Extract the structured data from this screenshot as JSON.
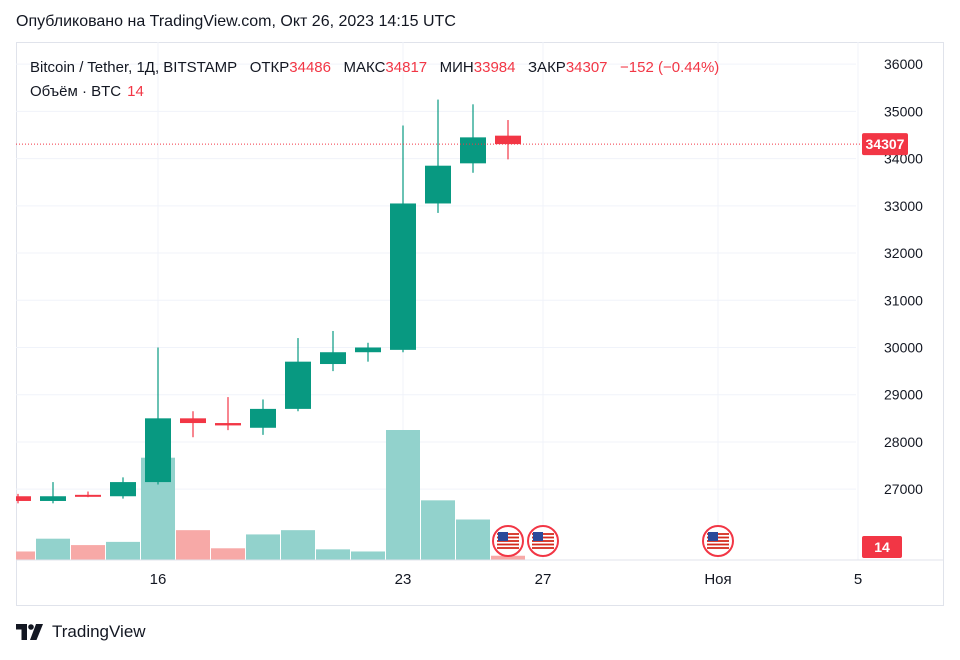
{
  "published_line": "Опубликовано на TradingView.com, Окт 26, 2023 14:15 UTC",
  "legend": {
    "symbol": "Bitcoin / Tether, 1Д, BITSTAMP",
    "open_label": "ОТКР",
    "open": "34486",
    "high_label": "МАКС",
    "high": "34817",
    "low_label": "МИН",
    "low": "33984",
    "close_label": "ЗАКР",
    "close": "34307",
    "change": "−152 (−0.44%)"
  },
  "volume_legend": {
    "label": "Объём · BTC",
    "value": "14"
  },
  "price_badge": "34307",
  "volume_badge": "14",
  "footer": {
    "brand": "TradingView",
    "logo_icon": "tradingview-logo-icon"
  },
  "colors": {
    "up": "#089981",
    "down": "#f23645",
    "vol_up": "#92d2cc",
    "vol_down": "#f7a9a7"
  },
  "chart_data": {
    "type": "candlestick",
    "ylim": [
      25500,
      36300
    ],
    "y_ticks": [
      27000,
      28000,
      29000,
      30000,
      31000,
      32000,
      33000,
      34000,
      35000,
      36000
    ],
    "x_ticks": [
      {
        "day": 16,
        "label": "16"
      },
      {
        "day": 23,
        "label": "23"
      },
      {
        "day": 27,
        "label": "27"
      },
      {
        "day": 32,
        "label": "Ноя"
      },
      {
        "day": 36,
        "label": "5"
      }
    ],
    "last_price": 34307,
    "candles": [
      {
        "day": 12,
        "open": 26850,
        "high": 26900,
        "low": 26700,
        "close": 26750,
        "volume": 0.4
      },
      {
        "day": 13,
        "open": 26750,
        "high": 27150,
        "low": 26700,
        "close": 26850,
        "volume": 1.0
      },
      {
        "day": 14,
        "open": 26880,
        "high": 26950,
        "low": 26830,
        "close": 26860,
        "volume": 0.7
      },
      {
        "day": 15,
        "open": 26850,
        "high": 27250,
        "low": 26800,
        "close": 27150,
        "volume": 0.85
      },
      {
        "day": 16,
        "open": 27150,
        "high": 30000,
        "low": 27100,
        "close": 28500,
        "volume": 4.8
      },
      {
        "day": 17,
        "open": 28500,
        "high": 28650,
        "low": 28100,
        "close": 28400,
        "volume": 1.4
      },
      {
        "day": 18,
        "open": 28400,
        "high": 28950,
        "low": 28250,
        "close": 28350,
        "volume": 0.55
      },
      {
        "day": 19,
        "open": 28300,
        "high": 28900,
        "low": 28150,
        "close": 28700,
        "volume": 1.2
      },
      {
        "day": 20,
        "open": 28700,
        "high": 30200,
        "low": 28650,
        "close": 29700,
        "volume": 1.4
      },
      {
        "day": 21,
        "open": 29650,
        "high": 30350,
        "low": 29500,
        "close": 29900,
        "volume": 0.5
      },
      {
        "day": 22,
        "open": 29900,
        "high": 30100,
        "low": 29700,
        "close": 30000,
        "volume": 0.4
      },
      {
        "day": 23,
        "open": 29950,
        "high": 34700,
        "low": 29900,
        "close": 33050,
        "volume": 6.1
      },
      {
        "day": 24,
        "open": 33050,
        "high": 35250,
        "low": 32850,
        "close": 33850,
        "volume": 2.8
      },
      {
        "day": 25,
        "open": 33900,
        "high": 35150,
        "low": 33700,
        "close": 34450,
        "volume": 1.9
      },
      {
        "day": 26,
        "open": 34486,
        "high": 34817,
        "low": 33984,
        "close": 34307,
        "volume": 0.2
      }
    ],
    "events": [
      {
        "day": 26
      },
      {
        "day": 27
      },
      {
        "day": 32
      }
    ]
  }
}
